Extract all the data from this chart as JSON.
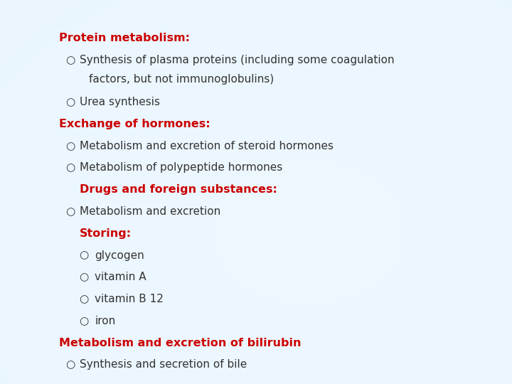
{
  "text_color_red": "#cc0000",
  "text_color_dark": "#333333",
  "bullet_char": "○",
  "lines": [
    {
      "text": "Protein metabolism:",
      "color": "red",
      "bold": true,
      "indent": 0,
      "bullet": false,
      "fontsize": 11.5
    },
    {
      "text": "Synthesis of plasma proteins (including some coagulation\n    factors, but not immunoglobulins)",
      "color": "dark",
      "bold": false,
      "indent": 1,
      "bullet": true,
      "fontsize": 11
    },
    {
      "text": "Urea synthesis",
      "color": "dark",
      "bold": false,
      "indent": 1,
      "bullet": true,
      "fontsize": 11
    },
    {
      "text": "Exchange of hormones:",
      "color": "red",
      "bold": true,
      "indent": 0,
      "bullet": false,
      "fontsize": 11.5
    },
    {
      "text": "Metabolism and excretion of steroid hormones",
      "color": "dark",
      "bold": false,
      "indent": 1,
      "bullet": true,
      "fontsize": 11
    },
    {
      "text": "Metabolism of polypeptide hormones",
      "color": "dark",
      "bold": false,
      "indent": 1,
      "bullet": true,
      "fontsize": 11
    },
    {
      "text": "Drugs and foreign substances:",
      "color": "red",
      "bold": true,
      "indent": 1,
      "bullet": false,
      "fontsize": 11.5
    },
    {
      "text": "Metabolism and excretion",
      "color": "dark",
      "bold": false,
      "indent": 1,
      "bullet": true,
      "fontsize": 11
    },
    {
      "text": "Storing:",
      "color": "red",
      "bold": true,
      "indent": 1,
      "bullet": false,
      "fontsize": 11.5
    },
    {
      "text": "glycogen",
      "color": "dark",
      "bold": false,
      "indent": 2,
      "bullet": true,
      "fontsize": 11
    },
    {
      "text": "vitamin A",
      "color": "dark",
      "bold": false,
      "indent": 2,
      "bullet": true,
      "fontsize": 11
    },
    {
      "text": "vitamin B 12",
      "color": "dark",
      "bold": false,
      "indent": 2,
      "bullet": true,
      "fontsize": 11
    },
    {
      "text": "iron",
      "color": "dark",
      "bold": false,
      "indent": 2,
      "bullet": true,
      "fontsize": 11
    },
    {
      "text": "Metabolism and excretion of bilirubin",
      "color": "red",
      "bold": true,
      "indent": 0,
      "bullet": false,
      "fontsize": 11.5
    },
    {
      "text": "Synthesis and secretion of bile",
      "color": "dark",
      "bold": false,
      "indent": 1,
      "bullet": true,
      "fontsize": 11
    }
  ],
  "figsize": [
    7.2,
    5.4
  ],
  "dpi": 100
}
